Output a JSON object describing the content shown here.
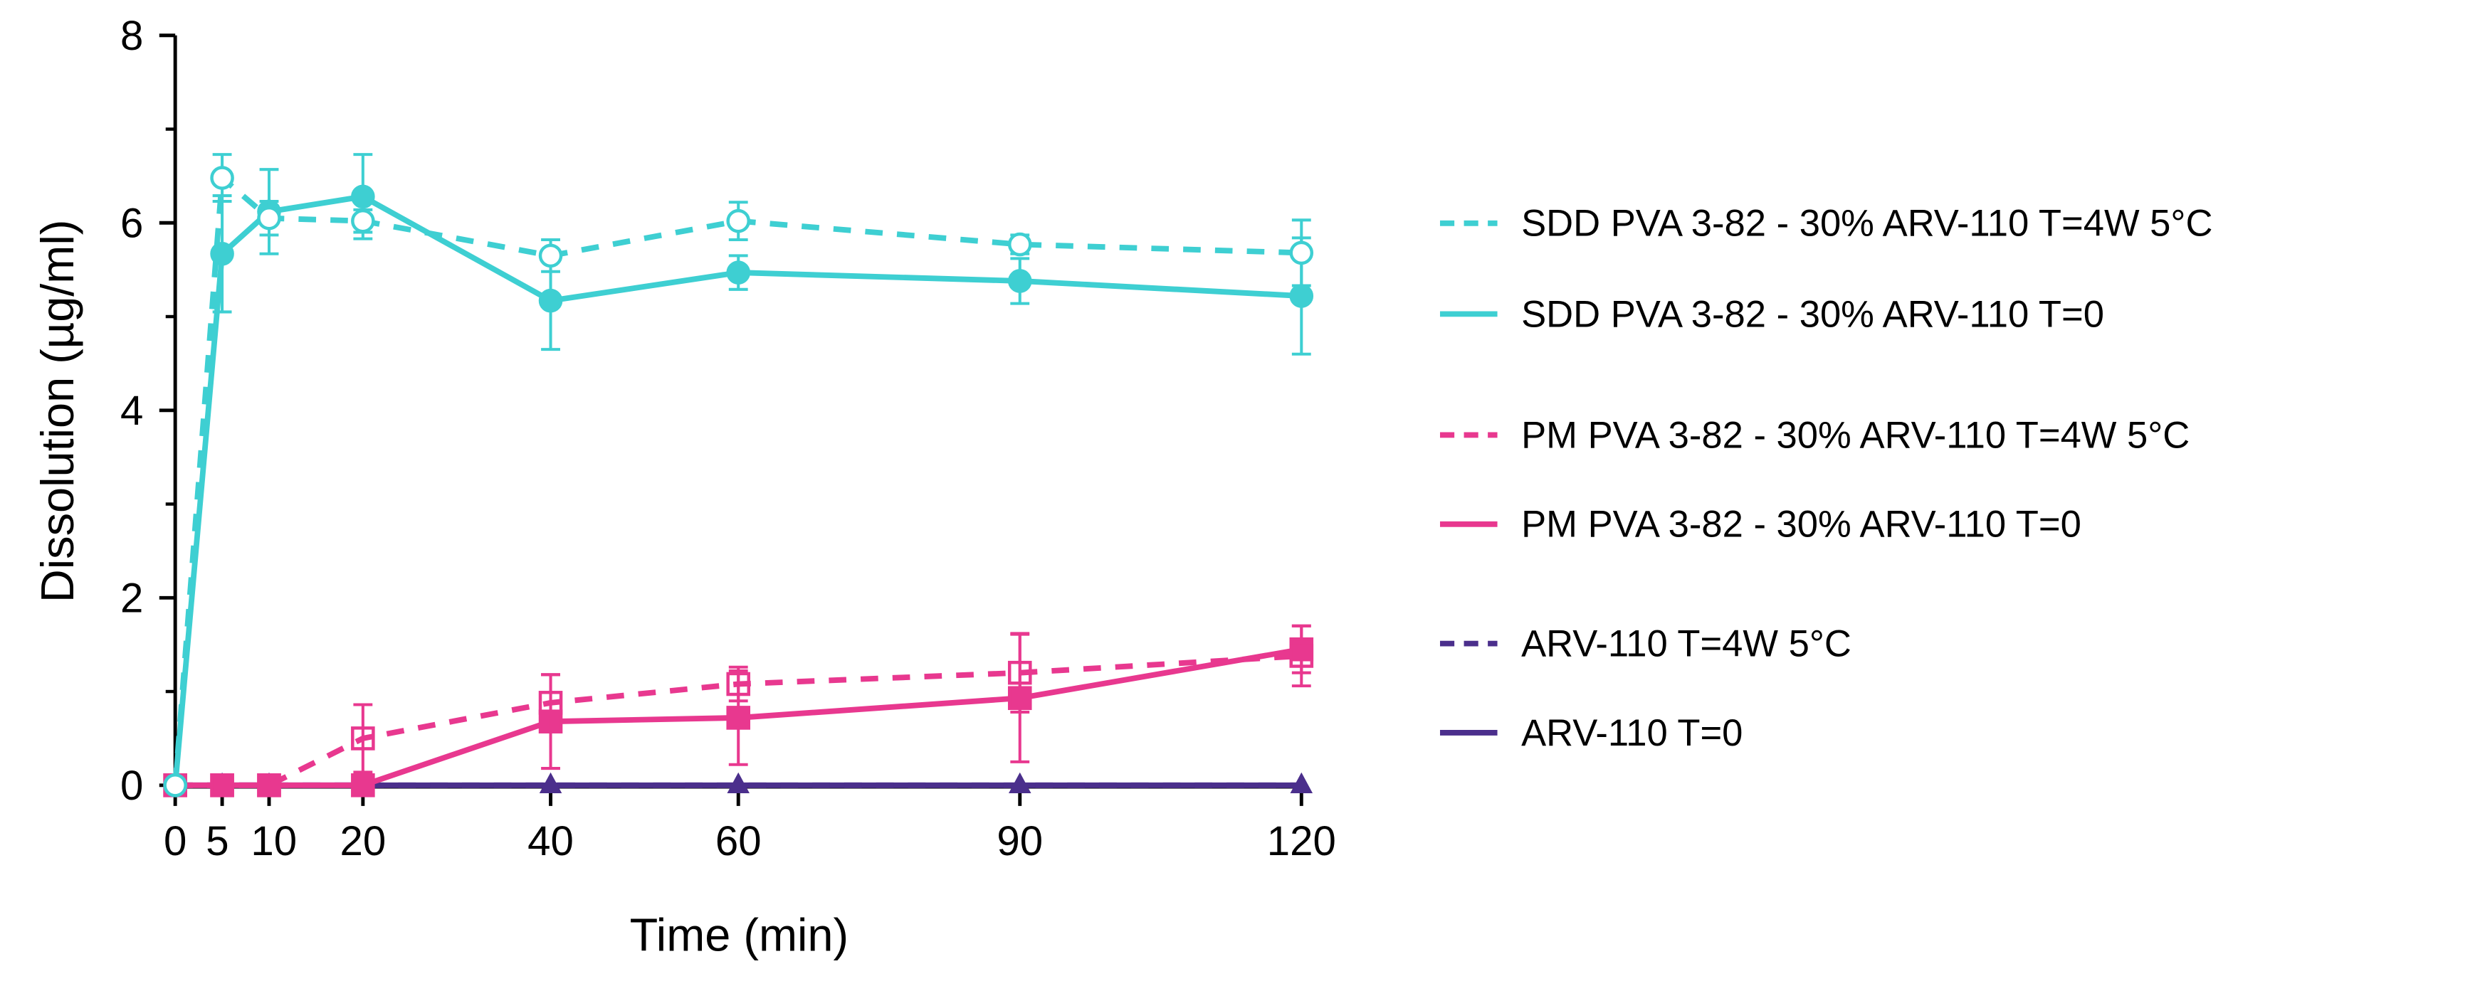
{
  "chart_data": {
    "type": "line",
    "title": "",
    "xlabel": "Time (min)",
    "ylabel": "Dissolution (µg/ml)",
    "xlim": [
      0,
      120
    ],
    "ylim": [
      0,
      8
    ],
    "xticks": [
      0,
      5,
      10,
      20,
      40,
      60,
      90,
      120
    ],
    "xtick_labels": [
      "0",
      "5",
      "10",
      "20",
      "40",
      "60",
      "90",
      "120"
    ],
    "yticks": [
      0,
      2,
      4,
      6,
      8
    ],
    "ytick_labels": [
      "0",
      "2",
      "4",
      "6",
      "8"
    ],
    "grid": false,
    "legend_position": "right",
    "x": [
      0,
      5,
      10,
      20,
      40,
      60,
      90,
      120
    ],
    "series": [
      {
        "name": "SDD PVA 3-82 - 30% ARV-110 T=4W 5°C",
        "color": "#3ECFD2",
        "dashed": true,
        "marker": "circle-open",
        "values": [
          0,
          6.48,
          6.05,
          6.02,
          5.65,
          6.02,
          5.77,
          5.68
        ],
        "errors": [
          0,
          0.25,
          0.18,
          0.12,
          0.17,
          0.2,
          0.1,
          0.35
        ]
      },
      {
        "name": "SDD PVA 3-82 - 30% ARV-110 T=0",
        "color": "#3ECFD2",
        "dashed": false,
        "marker": "circle-filled",
        "values": [
          0,
          5.67,
          6.12,
          6.28,
          5.17,
          5.47,
          5.38,
          5.22
        ],
        "errors": [
          0,
          0.62,
          0.45,
          0.45,
          0.52,
          0.18,
          0.24,
          0.62
        ]
      },
      {
        "name": "PM PVA 3-82 - 30% ARV-110 T=4W 5°C",
        "color": "#E8388F",
        "dashed": true,
        "marker": "square-open",
        "values": [
          0,
          0,
          0,
          0.5,
          0.88,
          1.08,
          1.2,
          1.38
        ],
        "errors": [
          0,
          0,
          0,
          0.36,
          0.3,
          0.18,
          0.42,
          0.32
        ]
      },
      {
        "name": "PM PVA 3-82 - 30% ARV-110 T=0",
        "color": "#E8388F",
        "dashed": false,
        "marker": "square-filled",
        "values": [
          0,
          0,
          0,
          0,
          0.68,
          0.72,
          0.93,
          1.45
        ],
        "errors": [
          0,
          0,
          0,
          0,
          0.5,
          0.5,
          0.68,
          0.25
        ]
      },
      {
        "name": "ARV-110 T=4W 5°C",
        "color": "#4B2F8C",
        "dashed": true,
        "marker": "triangle",
        "values": [
          0,
          0,
          0,
          0,
          0,
          0,
          0,
          0
        ],
        "errors": [
          0,
          0,
          0,
          0,
          0,
          0,
          0,
          0
        ]
      },
      {
        "name": "ARV-110 T=0",
        "color": "#4B2F8C",
        "dashed": false,
        "marker": "triangle",
        "values": [
          0,
          0,
          0,
          0,
          0,
          0,
          0,
          0
        ],
        "errors": [
          0,
          0,
          0,
          0,
          0,
          0,
          0,
          0
        ]
      }
    ]
  }
}
